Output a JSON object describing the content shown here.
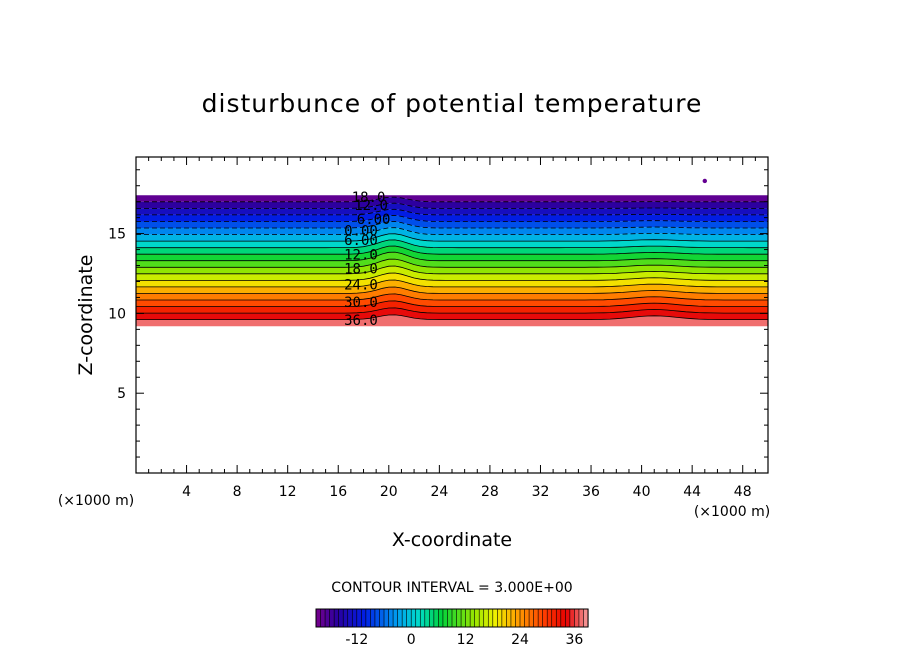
{
  "chart_data": {
    "type": "contour",
    "title": "disturbunce of potential temperature",
    "xlabel": "X-coordinate",
    "ylabel": "Z-coordinate",
    "x_unit": "(×1000 m)",
    "y_unit": "(×1000 m)",
    "xlim": [
      0,
      50
    ],
    "ylim": [
      0,
      19.8
    ],
    "x_ticks": [
      "4",
      "8",
      "12",
      "16",
      "20",
      "24",
      "28",
      "32",
      "36",
      "40",
      "44",
      "48"
    ],
    "x_tick_values": [
      4,
      8,
      12,
      16,
      20,
      24,
      28,
      32,
      36,
      40,
      44,
      48
    ],
    "y_ticks": [
      "5",
      "10",
      "15"
    ],
    "y_tick_values": [
      5,
      10,
      15
    ],
    "contour_interval_text": "CONTOUR INTERVAL = 3.000E+00",
    "contour_interval": 3,
    "value_range": [
      -21,
      39
    ],
    "top_boundary_z": 17.4,
    "bottom_boundary_z": 9.2,
    "contour_labels": [
      {
        "text": "18.0",
        "value": -18,
        "x": 18.4,
        "z": 17.3
      },
      {
        "text": "12.0",
        "value": -12,
        "x": 18.6,
        "z": 16.8
      },
      {
        "text": "6.00",
        "value": -6,
        "x": 18.8,
        "z": 15.9
      },
      {
        "text": "0.00",
        "value": 0,
        "x": 17.8,
        "z": 15.2
      },
      {
        "text": "6.00",
        "value": 6,
        "x": 17.8,
        "z": 14.6
      },
      {
        "text": "12.0",
        "value": 12,
        "x": 17.8,
        "z": 13.7
      },
      {
        "text": "18.0",
        "value": 18,
        "x": 17.8,
        "z": 12.8
      },
      {
        "text": "24.0",
        "value": 24,
        "x": 17.8,
        "z": 11.8
      },
      {
        "text": "30.0",
        "value": 30,
        "x": 17.8,
        "z": 10.7
      },
      {
        "text": "36.0",
        "value": 36,
        "x": 17.8,
        "z": 9.6
      }
    ],
    "colorbar": {
      "ticks": [
        "-12",
        "0",
        "12",
        "24",
        "36"
      ],
      "tick_values": [
        -12,
        0,
        12,
        24,
        36
      ],
      "range": [
        -21,
        39
      ]
    },
    "legend": "bottom-center"
  }
}
